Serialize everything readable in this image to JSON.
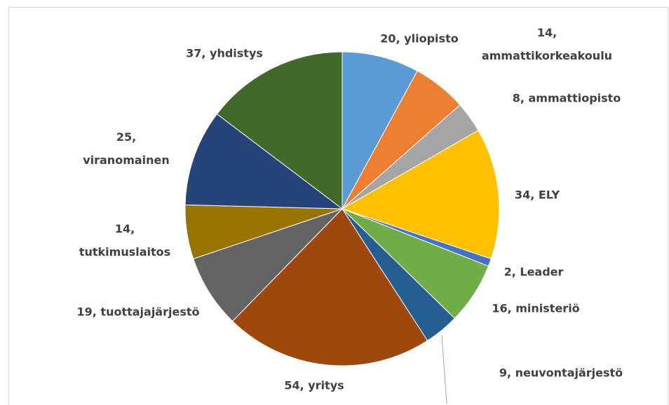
{
  "chart_data": {
    "type": "pie",
    "values": [
      20,
      14,
      8,
      34,
      2,
      16,
      9,
      54,
      19,
      14,
      25,
      37
    ],
    "value_labels": [
      "20, yliopisto",
      "14, ammattikorkeakoulu",
      "8, ammattiopisto",
      "34, ELY",
      "2, Leader",
      "16, ministeriö",
      "9, neuvontajärjestö",
      "54, yritys",
      "19, tuottajajärjestö",
      "14, tutkimuslaitos",
      "25, viranomainen",
      "37, yhdistys"
    ],
    "colors": [
      "#5b9bd5",
      "#ed7d31",
      "#a5a5a5",
      "#ffc000",
      "#4472c4",
      "#70ad47",
      "#255e91",
      "#9e480e",
      "#636363",
      "#997300",
      "#264478",
      "#43682b"
    ]
  }
}
